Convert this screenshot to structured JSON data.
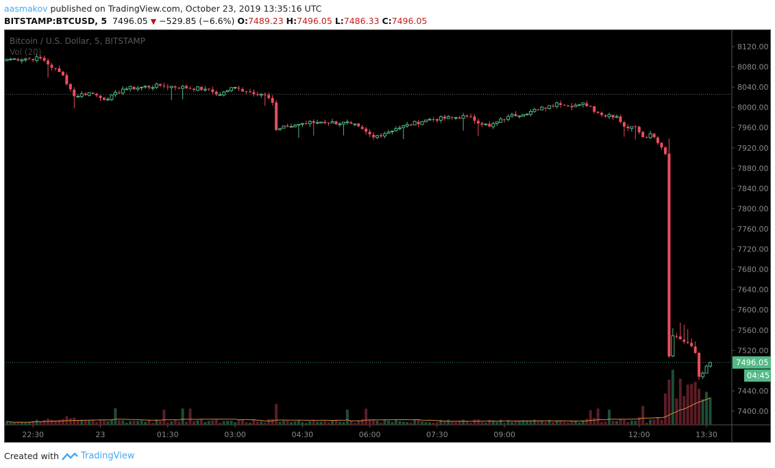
{
  "header": {
    "user": "aasmakov",
    "published": "published on TradingView.com, October 23, 2019 13:35:16 UTC",
    "symbol": "BITSTAMP:BTCUSD, 5",
    "last": "7496.05",
    "change": "−529.85 (−6.6%)",
    "o_label": "O:",
    "o": "7489.23",
    "h_label": "H:",
    "h": "7496.05",
    "l_label": "L:",
    "l": "7486.33",
    "c_label": "C:",
    "c": "7496.05"
  },
  "footer": {
    "created": "Created with",
    "brand": "TradingView"
  },
  "chart_data": {
    "type": "candlestick",
    "title": "Bitcoin / U.S. Dollar, 5, BITSTAMP",
    "volume_label": "Vol (20)",
    "y_ticks": [
      8120,
      8080,
      8040,
      8000,
      7960,
      7920,
      7880,
      7840,
      7800,
      7760,
      7720,
      7680,
      7640,
      7600,
      7560,
      7520,
      7440,
      7400
    ],
    "ylim": [
      7375,
      8145
    ],
    "x_ticks": [
      {
        "label": "22:30",
        "min": 35
      },
      {
        "label": "23",
        "min": 125
      },
      {
        "label": "01:30",
        "min": 215
      },
      {
        "label": "03:00",
        "min": 305
      },
      {
        "label": "04:30",
        "min": 395
      },
      {
        "label": "06:00",
        "min": 485
      },
      {
        "label": "07:30",
        "min": 575
      },
      {
        "label": "09:00",
        "min": 665
      },
      {
        "label": "12:00",
        "min": 845
      },
      {
        "label": "13:30",
        "min": 935
      }
    ],
    "start_time": "21:55",
    "interval_min": 5,
    "close_anchors": [
      [
        0,
        8095
      ],
      [
        9,
        8097
      ],
      [
        15,
        8063
      ],
      [
        18,
        8022
      ],
      [
        22,
        8029
      ],
      [
        27,
        8016
      ],
      [
        31,
        8036
      ],
      [
        41,
        8043
      ],
      [
        53,
        8036
      ],
      [
        57,
        8025
      ],
      [
        60,
        8039
      ],
      [
        69,
        8025
      ],
      [
        71,
        8009
      ],
      [
        72,
        7955
      ],
      [
        75,
        7962
      ],
      [
        79,
        7968
      ],
      [
        84,
        7971
      ],
      [
        92,
        7968
      ],
      [
        98,
        7941
      ],
      [
        104,
        7958
      ],
      [
        112,
        7975
      ],
      [
        123,
        7982
      ],
      [
        129,
        7962
      ],
      [
        134,
        7982
      ],
      [
        142,
        7995
      ],
      [
        147,
        8009
      ],
      [
        150,
        8002
      ],
      [
        154,
        8009
      ],
      [
        158,
        7989
      ],
      [
        163,
        7982
      ],
      [
        165,
        7962
      ],
      [
        168,
        7962
      ],
      [
        170,
        7941
      ],
      [
        172,
        7948
      ],
      [
        175,
        7921
      ],
      [
        176,
        7908
      ],
      [
        177,
        7508
      ],
      [
        178,
        7549
      ],
      [
        180,
        7542
      ],
      [
        182,
        7535
      ],
      [
        184,
        7515
      ],
      [
        185,
        7468
      ],
      [
        186,
        7475
      ],
      [
        187,
        7489
      ],
      [
        188,
        7496
      ]
    ],
    "prev_close": 8025.9,
    "last_price": "7496.05",
    "countdown": "04:45",
    "colors": {
      "up": "#53b987",
      "down": "#eb4d5c",
      "vol_up": "#1e4d36",
      "vol_down": "#5c1e26",
      "ma": "#e08a3c",
      "bg": "#000000"
    }
  }
}
